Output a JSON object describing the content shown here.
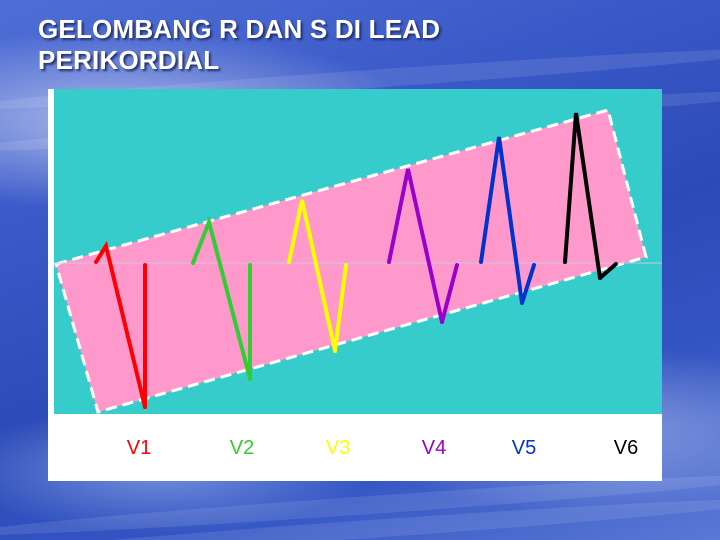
{
  "title": {
    "line1": "GELOMBANG R DAN S DI LEAD",
    "line2": "PERIKORDIAL"
  },
  "diagram": {
    "background_color": "#36cccc",
    "band_color": "#ff99cc",
    "band_border_color": "#ffffff",
    "baseline_color": "#c8c8e6",
    "label_area_color": "#ffffff"
  },
  "leads": [
    {
      "label": "V1",
      "color": "#ff0000"
    },
    {
      "label": "V2",
      "color": "#33cc33"
    },
    {
      "label": "V3",
      "color": "#ffff00"
    },
    {
      "label": "V4",
      "color": "#9900cc"
    },
    {
      "label": "V5",
      "color": "#0033cc"
    },
    {
      "label": "V6",
      "color": "#000000"
    }
  ]
}
